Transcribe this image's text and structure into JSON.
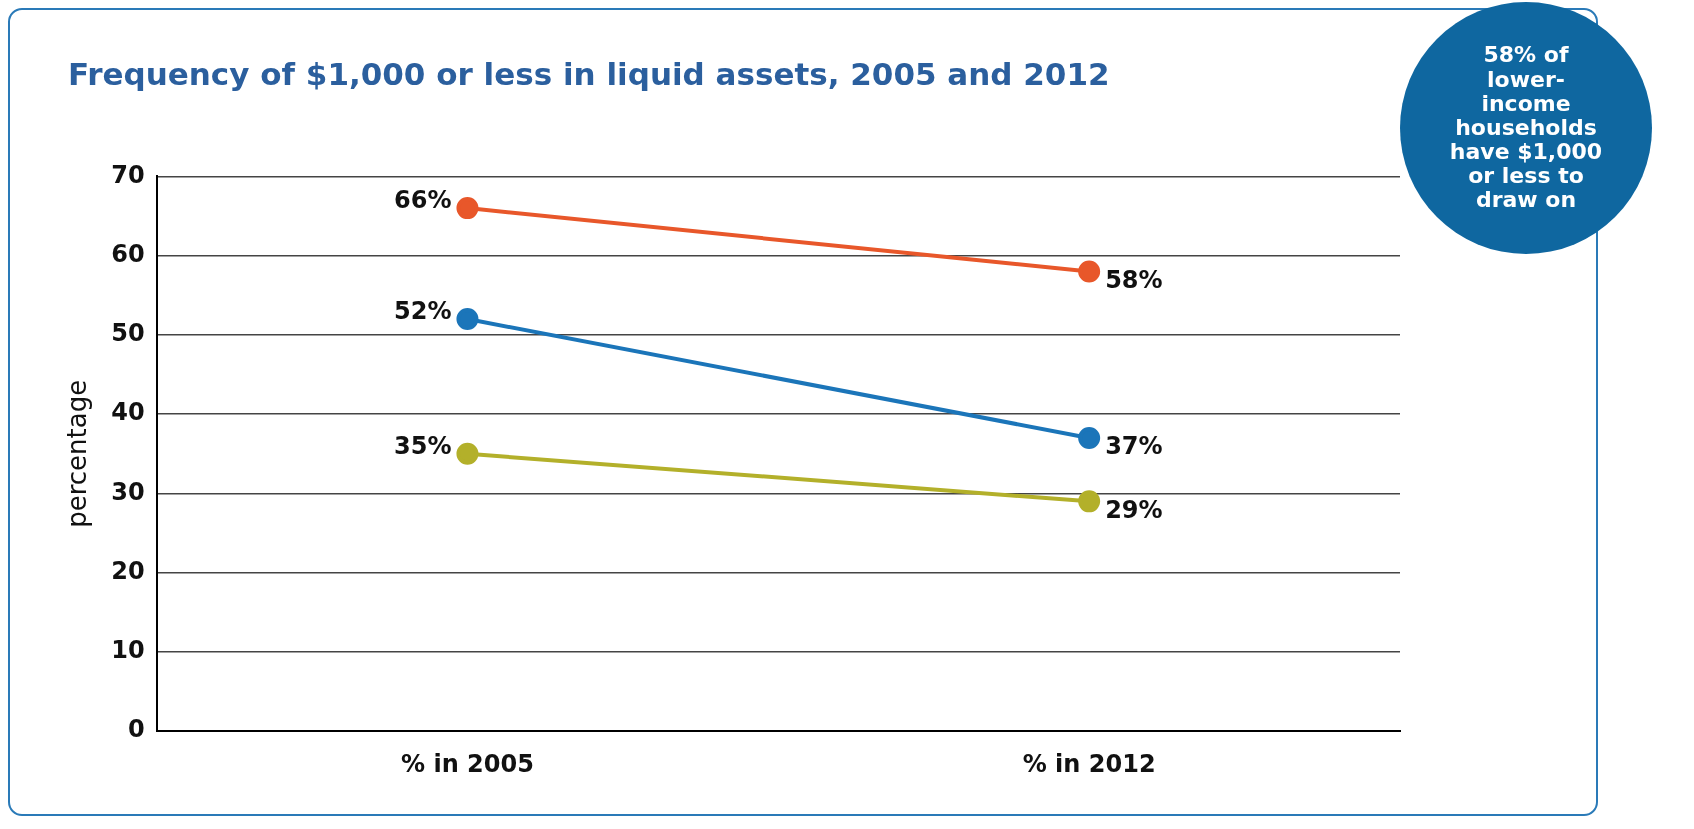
{
  "chart_data": {
    "type": "line",
    "title": "Frequency of $1,000 or less in liquid assets, 2005 and 2012",
    "ylabel": "percentage",
    "categories": [
      "% in 2005",
      "% in 2012"
    ],
    "series": [
      {
        "color": "#e8572a",
        "values": [
          66,
          58
        ],
        "value_labels": [
          "66%",
          "58%"
        ]
      },
      {
        "color": "#1b75b9",
        "values": [
          52,
          37
        ],
        "value_labels": [
          "52%",
          "37%"
        ]
      },
      {
        "color": "#b3b02a",
        "values": [
          35,
          29
        ],
        "value_labels": [
          "35%",
          "29%"
        ]
      }
    ],
    "ylim": [
      0,
      70
    ],
    "yticks": [
      0,
      10,
      20,
      30,
      40,
      50,
      60,
      70
    ],
    "grid": "y",
    "legend": false,
    "marker": "circle",
    "line_style": "solid",
    "annotations": [
      "58% of lower-income households have $1,000 or less to draw on"
    ]
  }
}
